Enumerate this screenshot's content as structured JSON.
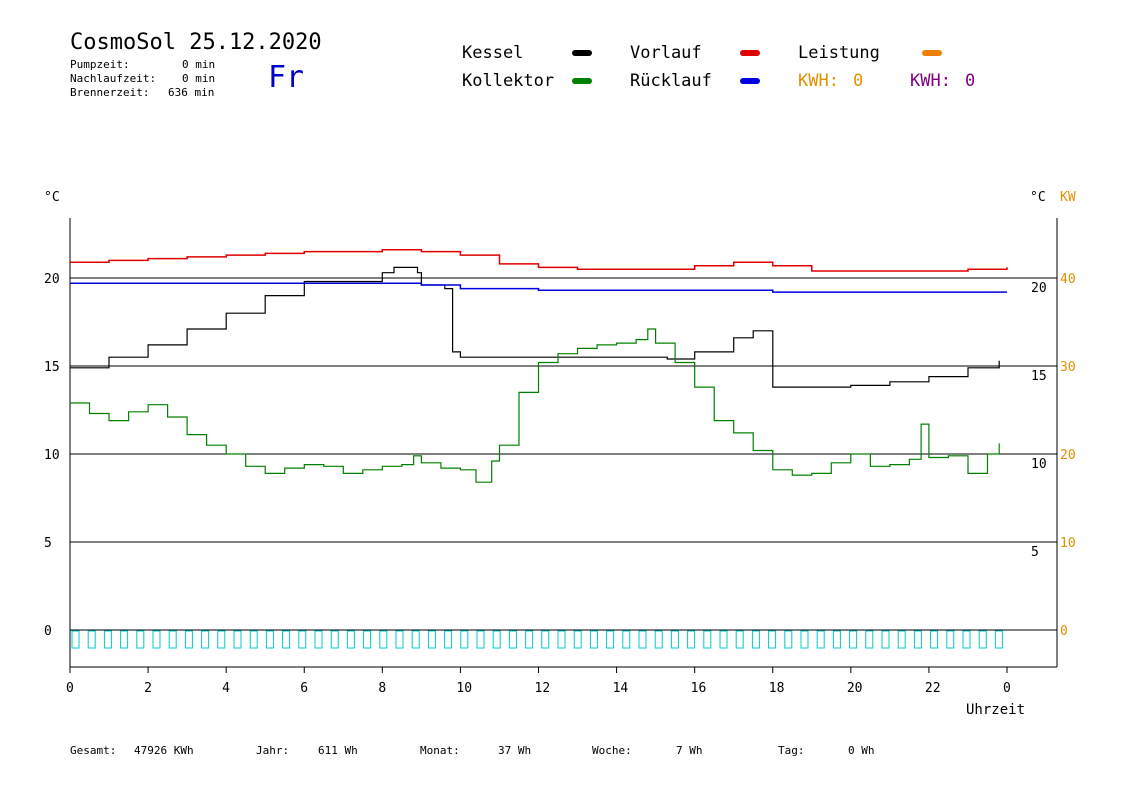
{
  "header": {
    "title": "CosmoSol 25.12.2020",
    "weekday": "Fr",
    "pump_label": "Pumpzeit:",
    "pump_value": "0 min",
    "followup_label": "Nachlaufzeit:",
    "followup_value": "0 min",
    "burner_label": "Brennerzeit:",
    "burner_value": "636 min"
  },
  "legend": {
    "kessel": {
      "label": "Kessel",
      "color": "#000000"
    },
    "kollektor": {
      "label": "Kollektor",
      "color": "#008000"
    },
    "vorlauf": {
      "label": "Vorlauf",
      "color": "#e00000"
    },
    "ruecklauf": {
      "label": "Rücklauf",
      "color": "#0000e0"
    },
    "leistung": {
      "label": "Leistung",
      "color": "#f08000"
    },
    "kwh1": {
      "label": "KWH:",
      "value": "0",
      "color": "#e09000"
    },
    "kwh2": {
      "label": "KWH:",
      "value": "0",
      "color": "#800080"
    }
  },
  "footer": {
    "gesamt_label": "Gesamt:",
    "gesamt_value": "47926 KWh",
    "jahr_label": "Jahr:",
    "jahr_value": "611 Wh",
    "monat_label": "Monat:",
    "monat_value": "37 Wh",
    "woche_label": "Woche:",
    "woche_value": "7 Wh",
    "tag_label": "Tag:",
    "tag_value": "0 Wh"
  },
  "chart_data": {
    "type": "line",
    "ylabel_left": "°C",
    "ylabel_right": "°C",
    "ylabel_right2": "KW",
    "xlabel": "Uhrzeit",
    "xlim": [
      0,
      24
    ],
    "ylim": [
      -1.5,
      24
    ],
    "x_ticks": [
      "0",
      "2",
      "4",
      "6",
      "8",
      "10",
      "12",
      "14",
      "16",
      "18",
      "20",
      "22",
      "0"
    ],
    "y_ticks_left": [
      "20",
      "15",
      "10",
      "5",
      "0"
    ],
    "y_ticks_left_values": [
      20,
      15,
      10,
      5,
      0
    ],
    "y_ticks_right": [
      "20",
      "15",
      "10",
      "5"
    ],
    "y_ticks_right_values": [
      20,
      15,
      10,
      5
    ],
    "y_ticks_kw": [
      "40",
      "30",
      "20",
      "10",
      "0"
    ],
    "y_ticks_kw_values": [
      20,
      15,
      10,
      5,
      0
    ],
    "series": [
      {
        "name": "Kessel",
        "color": "#000000",
        "x": [
          0,
          1,
          2,
          3,
          4,
          5,
          6,
          6.5,
          7,
          7.5,
          8,
          8.3,
          8.9,
          9,
          9.6,
          9.8,
          10,
          11,
          12,
          13,
          14,
          15,
          15.3,
          16,
          17,
          17.5,
          18,
          19,
          20,
          21,
          22,
          23,
          23.8
        ],
        "y": [
          14.9,
          15.5,
          16.2,
          17.1,
          18,
          19,
          19.8,
          19.8,
          19.8,
          19.8,
          20.3,
          20.6,
          20.3,
          19.6,
          19.4,
          15.8,
          15.5,
          15.5,
          15.5,
          15.5,
          15.5,
          15.5,
          15.4,
          15.8,
          16.6,
          17,
          13.8,
          13.8,
          13.9,
          14.1,
          14.4,
          14.9,
          15.3
        ]
      },
      {
        "name": "Kollektor",
        "color": "#008000",
        "x": [
          0,
          0.5,
          1,
          1.5,
          2,
          2.5,
          3,
          3.5,
          4,
          4.5,
          5,
          5.5,
          6,
          6.5,
          7,
          7.5,
          8,
          8.5,
          8.8,
          9,
          9.5,
          10,
          10.4,
          10.8,
          11,
          11.5,
          12,
          12.5,
          13,
          13.5,
          14,
          14.5,
          14.8,
          15,
          15.5,
          16,
          16.5,
          17,
          17.5,
          18,
          18.5,
          19,
          19.5,
          20,
          20.5,
          21,
          21.5,
          21.8,
          22,
          22.5,
          23,
          23.5,
          23.8
        ],
        "y": [
          12.9,
          12.3,
          11.9,
          12.4,
          12.8,
          12.1,
          11.1,
          10.5,
          10,
          9.3,
          8.9,
          9.2,
          9.4,
          9.3,
          8.9,
          9.1,
          9.3,
          9.4,
          9.9,
          9.5,
          9.2,
          9.1,
          8.4,
          9.6,
          10.5,
          13.5,
          15.2,
          15.7,
          16,
          16.2,
          16.3,
          16.5,
          17.1,
          16.3,
          15.2,
          13.8,
          11.9,
          11.2,
          10.2,
          9.1,
          8.8,
          8.9,
          9.5,
          10,
          9.3,
          9.4,
          9.7,
          11.7,
          9.8,
          9.9,
          8.9,
          10,
          10.6
        ]
      },
      {
        "name": "Vorlauf",
        "color": "#e00000",
        "x": [
          0,
          1,
          2,
          3,
          4,
          5,
          6,
          7,
          8,
          8.5,
          9,
          10,
          11,
          12,
          13,
          14,
          15,
          16,
          17,
          18,
          19,
          20,
          21,
          22,
          23,
          24
        ],
        "y": [
          20.9,
          21,
          21.1,
          21.2,
          21.3,
          21.4,
          21.5,
          21.5,
          21.6,
          21.6,
          21.5,
          21.3,
          20.8,
          20.6,
          20.5,
          20.5,
          20.5,
          20.7,
          20.9,
          20.7,
          20.4,
          20.4,
          20.4,
          20.4,
          20.5,
          20.6
        ]
      },
      {
        "name": "Rücklauf",
        "color": "#0000e0",
        "x": [
          0,
          2,
          4,
          6,
          8,
          9,
          10,
          11,
          12,
          13,
          14,
          15,
          16,
          17,
          18,
          19,
          20,
          22,
          24
        ],
        "y": [
          19.7,
          19.7,
          19.7,
          19.7,
          19.7,
          19.6,
          19.4,
          19.4,
          19.3,
          19.3,
          19.3,
          19.3,
          19.3,
          19.3,
          19.2,
          19.2,
          19.2,
          19.2,
          19.2
        ]
      }
    ],
    "grid": "horizontal at y=0,5,10,15,20",
    "legend": "top"
  }
}
